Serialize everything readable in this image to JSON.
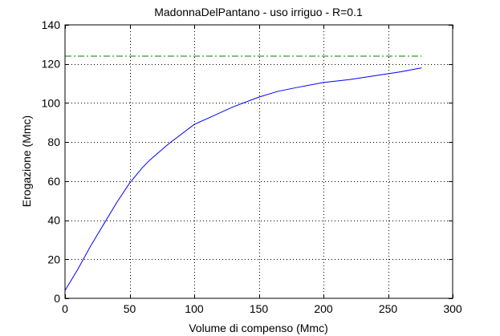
{
  "chart_data": {
    "type": "line",
    "title": "MadonnaDelPantano  -  uso irriguo  -   R=0.1",
    "xlabel": "Volume di compenso (Mmc)",
    "ylabel": "Erogazione (Mmc)",
    "xlim": [
      0,
      300
    ],
    "ylim": [
      0,
      140
    ],
    "xticks": [
      0,
      50,
      100,
      150,
      200,
      250,
      300
    ],
    "yticks": [
      0,
      20,
      40,
      60,
      80,
      100,
      120,
      140
    ],
    "grid": true,
    "series": [
      {
        "style": "solid",
        "color": "#0000ff",
        "x": [
          0,
          10,
          20,
          30,
          40,
          50,
          60,
          66,
          80,
          100,
          110,
          130,
          150,
          165,
          180,
          200,
          220,
          240,
          260,
          276
        ],
        "y": [
          4,
          15,
          27,
          38,
          49,
          59,
          67,
          71,
          79,
          89,
          92,
          98,
          103,
          106,
          108,
          110.5,
          112,
          114,
          116,
          118
        ]
      },
      {
        "style": "dashdot",
        "color": "#008000",
        "x": [
          0,
          276
        ],
        "y": [
          124,
          124
        ]
      }
    ]
  }
}
